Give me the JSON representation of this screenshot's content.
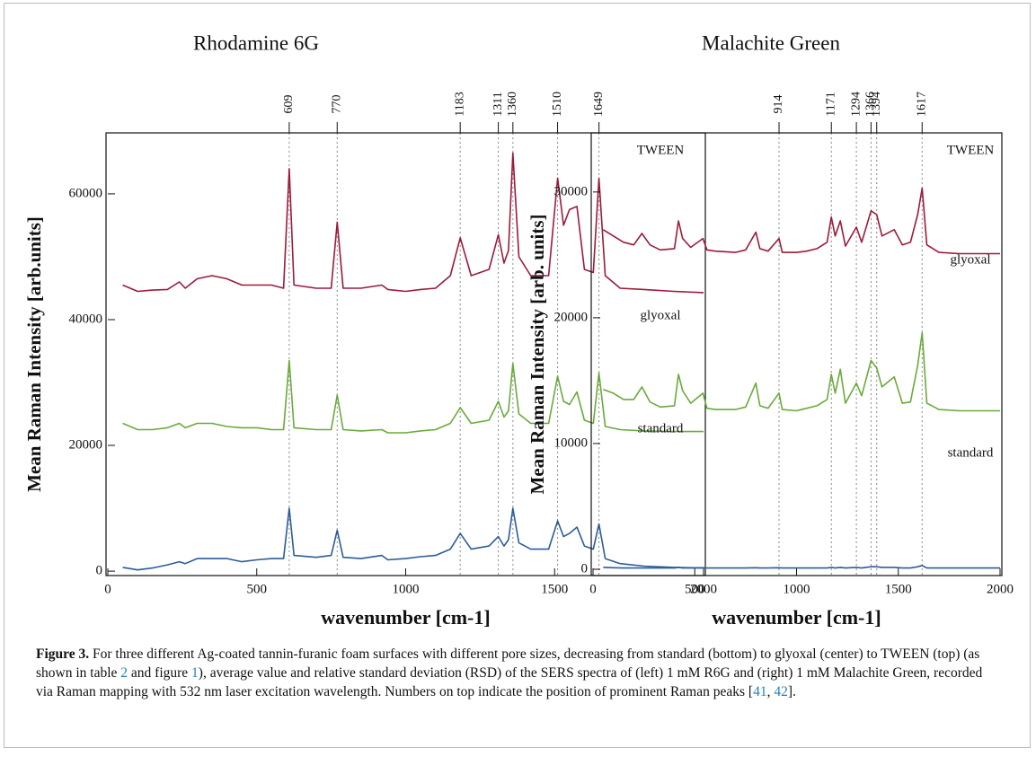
{
  "chart_data": [
    {
      "type": "line",
      "title": "Rhodamine 6G",
      "x_label": "wavenumber [cm-1]",
      "y_label": "Mean Raman Intensity [arb.units]",
      "x": [
        50,
        100,
        150,
        200,
        240,
        260,
        300,
        350,
        400,
        450,
        500,
        550,
        590,
        609,
        625,
        700,
        750,
        770,
        790,
        850,
        920,
        940,
        1000,
        1050,
        1100,
        1150,
        1183,
        1220,
        1280,
        1311,
        1330,
        1345,
        1360,
        1380,
        1420,
        1480,
        1510,
        1530,
        1550,
        1575,
        1600,
        1630,
        1649,
        1670,
        1720,
        1800,
        1900,
        2000
      ],
      "series": [
        {
          "name": "TWEEN",
          "color": "#9b1b3a",
          "values": [
            45500,
            44500,
            44700,
            44800,
            46000,
            45000,
            46500,
            47000,
            46500,
            45500,
            45500,
            45500,
            45000,
            64000,
            45500,
            45000,
            45000,
            55500,
            45000,
            45000,
            45500,
            44800,
            44500,
            44800,
            45000,
            47000,
            53000,
            47000,
            48000,
            53500,
            49000,
            51000,
            66500,
            50000,
            47000,
            47000,
            62500,
            55000,
            57500,
            58000,
            48000,
            47500,
            62500,
            47000,
            45000,
            44800,
            44500,
            44300
          ]
        },
        {
          "name": "glyoxal",
          "color": "#6aaa3a",
          "values": [
            23500,
            22500,
            22500,
            22800,
            23500,
            22800,
            23500,
            23500,
            23000,
            22800,
            22800,
            22500,
            22500,
            33500,
            22800,
            22500,
            22500,
            28000,
            22500,
            22300,
            22500,
            22000,
            22000,
            22300,
            22500,
            23500,
            26000,
            23500,
            24000,
            27000,
            24500,
            25500,
            33000,
            25000,
            23500,
            23500,
            31000,
            27000,
            26500,
            28500,
            24000,
            23500,
            31500,
            23000,
            22500,
            22300,
            22200,
            22200
          ]
        },
        {
          "name": "standard",
          "color": "#2b5c9a",
          "values": [
            600,
            200,
            500,
            1000,
            1500,
            1200,
            2000,
            2000,
            2000,
            1500,
            1800,
            2000,
            2000,
            10000,
            2500,
            2200,
            2500,
            6500,
            2200,
            2000,
            2500,
            1800,
            2000,
            2300,
            2500,
            3500,
            6000,
            3500,
            4000,
            5500,
            4000,
            5000,
            10000,
            4500,
            3500,
            3500,
            8000,
            5500,
            6000,
            7000,
            4000,
            3500,
            7500,
            2000,
            1200,
            800,
            600,
            500
          ]
        }
      ],
      "xlim": [
        0,
        2000
      ],
      "ylim": [
        -700,
        69700
      ],
      "xticks": [
        0,
        500,
        1000,
        1500,
        2000
      ],
      "yticks": [
        0,
        20000,
        40000,
        60000
      ],
      "peaks": [
        609,
        770,
        1183,
        1311,
        1360,
        1510,
        1649
      ]
    },
    {
      "type": "line",
      "title": "Malachite Green",
      "x_label": "wavenumber [cm-1]",
      "y_label": "Mean Raman Intensity [arb. units]",
      "x": [
        50,
        100,
        150,
        200,
        240,
        280,
        330,
        400,
        420,
        440,
        480,
        540,
        560,
        600,
        700,
        750,
        800,
        820,
        860,
        914,
        930,
        1000,
        1050,
        1100,
        1150,
        1171,
        1190,
        1215,
        1240,
        1294,
        1320,
        1366,
        1394,
        1420,
        1480,
        1520,
        1560,
        1595,
        1617,
        1640,
        1700,
        1800,
        1900,
        2000
      ],
      "series": [
        {
          "name": "TWEEN",
          "color": "#9b1b3a",
          "values": [
            27000,
            26500,
            26000,
            25800,
            26700,
            25800,
            25400,
            25500,
            27700,
            26300,
            25600,
            26300,
            25400,
            25300,
            25200,
            25400,
            26800,
            25500,
            25300,
            26300,
            25200,
            25200,
            25300,
            25500,
            26000,
            28000,
            26500,
            27700,
            25700,
            27200,
            26000,
            28500,
            28200,
            26500,
            27000,
            25800,
            26000,
            28200,
            30300,
            25800,
            25200,
            25100,
            25100,
            25100
          ]
        },
        {
          "name": "glyoxal",
          "color": "#6aaa3a",
          "values": [
            14300,
            14000,
            13500,
            13500,
            14500,
            13300,
            12900,
            13000,
            15500,
            14200,
            13200,
            14000,
            12800,
            12700,
            12700,
            12900,
            14800,
            13000,
            12800,
            14000,
            12700,
            12600,
            12800,
            13000,
            13500,
            15500,
            14000,
            15900,
            13200,
            14800,
            13800,
            16600,
            16000,
            14500,
            15300,
            13200,
            13300,
            16200,
            18800,
            13200,
            12700,
            12600,
            12600,
            12600
          ]
        },
        {
          "name": "standard",
          "color": "#2b5c9a",
          "values": [
            150,
            120,
            100,
            100,
            100,
            100,
            100,
            100,
            150,
            100,
            100,
            120,
            100,
            100,
            100,
            100,
            120,
            100,
            100,
            120,
            100,
            100,
            100,
            100,
            100,
            150,
            100,
            150,
            100,
            150,
            100,
            200,
            200,
            150,
            150,
            100,
            100,
            200,
            300,
            100,
            100,
            100,
            100,
            100
          ]
        }
      ],
      "xlim": [
        0,
        2000
      ],
      "ylim": [
        -500,
        34700
      ],
      "xticks": [
        0,
        500,
        1000,
        1500,
        2000
      ],
      "yticks": [
        0,
        10000,
        20000,
        30000
      ],
      "peaks": [
        914,
        1171,
        1294,
        1366,
        1394,
        1617
      ]
    }
  ],
  "caption": {
    "label": "Figure 3.",
    "parts": [
      {
        "text": " For three different Ag-coated tannin-furanic foam surfaces with different pore sizes, decreasing from standard (bottom) to glyoxal (center) to TWEEN (top) (as shown in table "
      },
      {
        "link": "2"
      },
      {
        "text": " and figure "
      },
      {
        "link": "1"
      },
      {
        "text": "), average value and relative standard deviation (RSD) of the SERS spectra of (left) 1 mM R6G and (right) 1 mM Malachite Green, recorded via Raman mapping with 532 nm laser excitation wavelength. Numbers on top indicate the position of prominent Raman peaks ["
      },
      {
        "link": "41"
      },
      {
        "text": ", "
      },
      {
        "link": "42"
      },
      {
        "text": "]."
      }
    ]
  }
}
